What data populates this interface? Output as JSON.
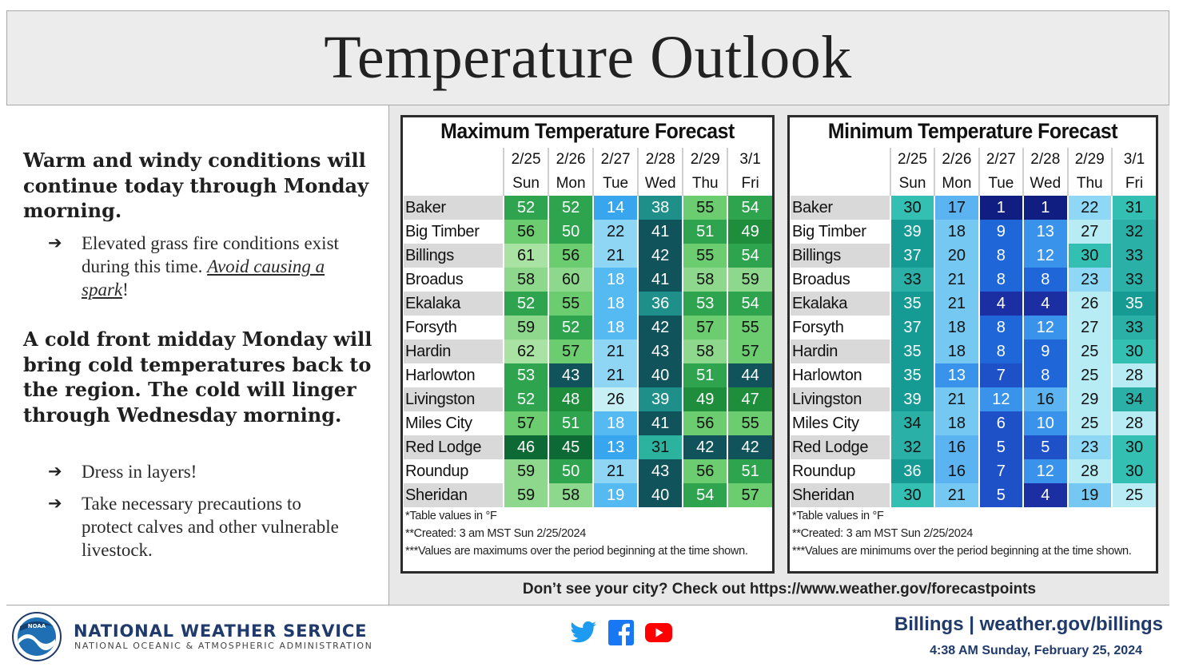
{
  "title": "Temperature Outlook",
  "left": {
    "heading1": "Warm and windy conditions will continue today through Monday morning.",
    "bullet1_text": "Elevated grass fire conditions exist during this time. ",
    "bullet1_em": "Avoid causing a spark",
    "bullet1_tail": "!",
    "heading2": "A cold front midday Monday will bring cold temperatures back to the region. The cold will linger through Wednesday morning.",
    "bullet2": "Dress in layers!",
    "bullet3": "Take necessary precautions to protect calves and other vulnerable livestock.",
    "arrow_glyph": "➔"
  },
  "dates": [
    "2/25",
    "2/26",
    "2/27",
    "2/28",
    "2/29",
    "3/1"
  ],
  "days": [
    "Sun",
    "Mon",
    "Tue",
    "Wed",
    "Thu",
    "Fri"
  ],
  "cities": [
    "Baker",
    "Big Timber",
    "Billings",
    "Broadus",
    "Ekalaka",
    "Forsyth",
    "Hardin",
    "Harlowton",
    "Livingston",
    "Miles City",
    "Red Lodge",
    "Roundup",
    "Sheridan"
  ],
  "max": {
    "title": "Maximum Temperature Forecast",
    "values": [
      [
        52,
        52,
        14,
        38,
        55,
        54
      ],
      [
        56,
        50,
        22,
        41,
        51,
        49
      ],
      [
        61,
        56,
        21,
        42,
        55,
        54
      ],
      [
        58,
        60,
        18,
        41,
        58,
        59
      ],
      [
        52,
        55,
        18,
        36,
        53,
        54
      ],
      [
        59,
        52,
        18,
        42,
        57,
        55
      ],
      [
        62,
        57,
        21,
        43,
        58,
        57
      ],
      [
        53,
        43,
        21,
        40,
        51,
        44
      ],
      [
        52,
        48,
        26,
        39,
        49,
        47
      ],
      [
        57,
        51,
        18,
        41,
        56,
        55
      ],
      [
        46,
        45,
        13,
        31,
        42,
        42
      ],
      [
        59,
        50,
        21,
        43,
        56,
        51
      ],
      [
        59,
        58,
        19,
        40,
        54,
        57
      ]
    ],
    "notes": [
      "*Table values in °F",
      "**Created: 3 am MST Sun 2/25/2024",
      "***Values are maximums over the period beginning at the time shown."
    ]
  },
  "min": {
    "title": "Minimum Temperature Forecast",
    "values": [
      [
        30,
        17,
        1,
        1,
        22,
        31
      ],
      [
        39,
        18,
        9,
        13,
        27,
        32
      ],
      [
        37,
        20,
        8,
        12,
        30,
        33
      ],
      [
        33,
        21,
        8,
        8,
        23,
        33
      ],
      [
        35,
        21,
        4,
        4,
        26,
        35
      ],
      [
        37,
        18,
        8,
        12,
        27,
        33
      ],
      [
        35,
        18,
        8,
        9,
        25,
        30
      ],
      [
        35,
        13,
        7,
        8,
        25,
        28
      ],
      [
        39,
        21,
        12,
        16,
        29,
        34
      ],
      [
        34,
        18,
        6,
        10,
        25,
        28
      ],
      [
        32,
        16,
        5,
        5,
        23,
        30
      ],
      [
        36,
        16,
        7,
        12,
        28,
        30
      ],
      [
        30,
        21,
        5,
        4,
        19,
        25
      ]
    ],
    "notes": [
      "*Table values in °F",
      "**Created: 3 am MST Sun 2/25/2024",
      "***Values are minimums over the period beginning at the time shown."
    ]
  },
  "cta": "Don’t see your city? Check out https://www.weather.gov/forecastpoints",
  "footer": {
    "agency": "NATIONAL WEATHER SERVICE",
    "agency_sub": "NATIONAL OCEANIC & ATMOSPHERIC ADMINISTRATION",
    "logo_text": "NOAA",
    "office": "Billings | weather.gov/billings",
    "timestamp": "4:38 AM Sunday, February 25, 2024",
    "social_icons": [
      "twitter-icon",
      "facebook-icon",
      "youtube-icon"
    ],
    "colors": {
      "navy": "#1f3a6b",
      "twitter": "#1d9bf0",
      "facebook": "#1877f2",
      "youtube": "#ff0000"
    }
  }
}
